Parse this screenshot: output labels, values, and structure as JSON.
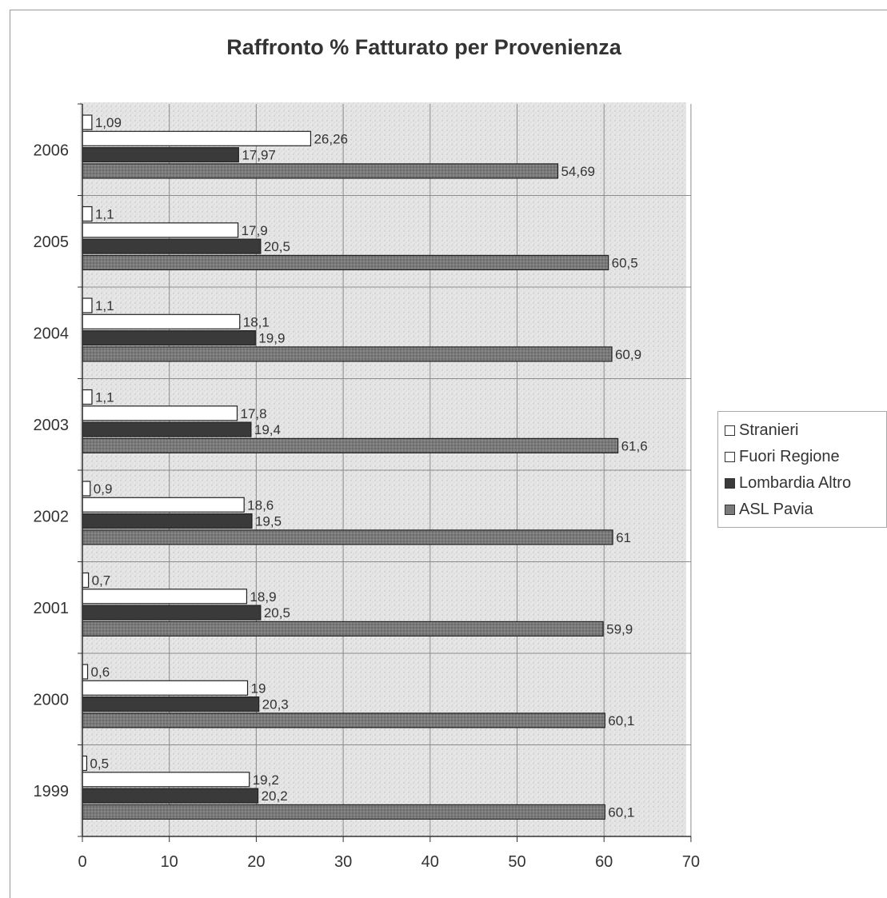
{
  "chart_data": {
    "type": "bar",
    "orientation": "horizontal",
    "title": "Raffronto % Fatturato per Provenienza",
    "categories": [
      "2006",
      "2005",
      "2004",
      "2003",
      "2002",
      "2001",
      "2000",
      "1999"
    ],
    "series": [
      {
        "name": "Stranieri",
        "color": "#ffffff",
        "values": [
          1.09,
          1.1,
          1.1,
          1.1,
          0.9,
          0.7,
          0.6,
          0.5
        ],
        "labels": [
          "1,09",
          "1,1",
          "1,1",
          "1,1",
          "0,9",
          "0,7",
          "0,6",
          "0,5"
        ]
      },
      {
        "name": "Fuori Regione",
        "color": "#ffffff",
        "values": [
          26.26,
          17.9,
          18.1,
          17.8,
          18.6,
          18.9,
          19,
          19.2
        ],
        "labels": [
          "26,26",
          "17,9",
          "18,1",
          "17,8",
          "18,6",
          "18,9",
          "19",
          "19,2"
        ]
      },
      {
        "name": "Lombardia Altro",
        "color": "#3a3a3a",
        "values": [
          17.97,
          20.5,
          19.9,
          19.4,
          19.5,
          20.5,
          20.3,
          20.2
        ],
        "labels": [
          "17,97",
          "20,5",
          "19,9",
          "19,4",
          "19,5",
          "20,5",
          "20,3",
          "20,2"
        ]
      },
      {
        "name": "ASL Pavia",
        "color": "#7a7a7a",
        "values": [
          54.69,
          60.5,
          60.9,
          61.6,
          61,
          59.9,
          60.1,
          60.1
        ],
        "labels": [
          "54,69",
          "60,5",
          "60,9",
          "61,6",
          "61",
          "59,9",
          "60,1",
          "60,1"
        ]
      }
    ],
    "xlim": [
      0,
      70
    ],
    "xticks": [
      "0",
      "10",
      "20",
      "30",
      "40",
      "50",
      "60",
      "70"
    ],
    "grid": true,
    "legend_position": "right"
  }
}
